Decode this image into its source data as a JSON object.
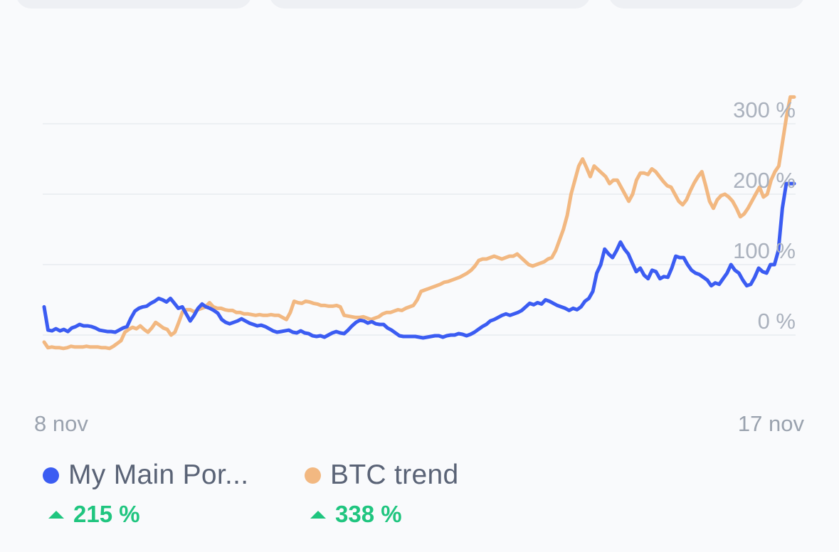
{
  "chart_data": {
    "type": "line",
    "x_start_label": "8 nov",
    "x_end_label": "17 nov",
    "y_ticks": [
      {
        "value": 0,
        "label": "0 %"
      },
      {
        "value": 100,
        "label": "100 %"
      },
      {
        "value": 200,
        "label": "200 %"
      },
      {
        "value": 300,
        "label": "300 %"
      }
    ],
    "ylim": [
      -30,
      340
    ],
    "grid": true,
    "series": [
      {
        "name": "My Main Por...",
        "color": "#3b5cf2",
        "change": "215 %",
        "values": [
          40,
          7,
          6,
          9,
          6,
          8,
          5,
          10,
          12,
          15,
          13,
          13,
          12,
          10,
          7,
          6,
          5,
          5,
          4,
          7,
          10,
          12,
          24,
          34,
          38,
          40,
          41,
          45,
          48,
          52,
          50,
          47,
          52,
          45,
          38,
          40,
          30,
          20,
          28,
          38,
          44,
          40,
          38,
          35,
          31,
          22,
          18,
          16,
          18,
          20,
          23,
          20,
          17,
          15,
          13,
          14,
          12,
          9,
          6,
          4,
          5,
          6,
          7,
          4,
          3,
          6,
          3,
          2,
          -1,
          -2,
          -1,
          -3,
          0,
          3,
          5,
          3,
          2,
          7,
          13,
          18,
          21,
          20,
          17,
          19,
          16,
          15,
          15,
          10,
          7,
          3,
          -1,
          -2,
          -2,
          -2,
          -2,
          -3,
          -4,
          -3,
          -2,
          -1,
          -1,
          -3,
          -1,
          0,
          0,
          2,
          1,
          -1,
          1,
          4,
          8,
          12,
          15,
          20,
          22,
          25,
          28,
          30,
          28,
          30,
          32,
          35,
          40,
          45,
          43,
          46,
          44,
          50,
          48,
          45,
          42,
          40,
          38,
          35,
          38,
          36,
          40,
          48,
          52,
          62,
          88,
          100,
          122,
          115,
          110,
          120,
          132,
          122,
          115,
          102,
          90,
          95,
          85,
          80,
          92,
          90,
          80,
          83,
          82,
          95,
          112,
          110,
          110,
          100,
          92,
          88,
          86,
          82,
          78,
          70,
          74,
          72,
          80,
          88,
          100,
          92,
          88,
          78,
          70,
          72,
          82,
          95,
          90,
          88,
          100,
          100,
          120,
          180,
          215,
          215,
          215
        ]
      },
      {
        "name": "BTC trend",
        "color": "#f2b881",
        "change": "338 %",
        "values": [
          -10,
          -18,
          -17,
          -18,
          -18,
          -19,
          -18,
          -16,
          -17,
          -17,
          -17,
          -16,
          -17,
          -17,
          -17,
          -18,
          -18,
          -19,
          -16,
          -12,
          -8,
          4,
          8,
          11,
          9,
          13,
          8,
          4,
          10,
          18,
          14,
          10,
          8,
          0,
          4,
          18,
          33,
          36,
          36,
          33,
          36,
          38,
          40,
          46,
          40,
          38,
          38,
          36,
          35,
          35,
          32,
          32,
          30,
          30,
          29,
          28,
          29,
          28,
          28,
          29,
          28,
          28,
          25,
          22,
          32,
          48,
          46,
          45,
          48,
          47,
          45,
          44,
          42,
          42,
          41,
          41,
          42,
          40,
          28,
          27,
          26,
          25,
          25,
          26,
          24,
          22,
          24,
          26,
          30,
          32,
          32,
          34,
          36,
          35,
          38,
          40,
          42,
          50,
          62,
          64,
          66,
          68,
          70,
          72,
          75,
          76,
          78,
          80,
          82,
          85,
          88,
          92,
          98,
          106,
          108,
          108,
          110,
          112,
          110,
          108,
          110,
          112,
          112,
          115,
          110,
          105,
          100,
          98,
          100,
          102,
          104,
          108,
          110,
          120,
          135,
          150,
          170,
          200,
          220,
          240,
          250,
          238,
          225,
          240,
          235,
          230,
          225,
          215,
          220,
          220,
          210,
          200,
          190,
          200,
          220,
          230,
          230,
          228,
          236,
          232,
          225,
          218,
          212,
          210,
          200,
          190,
          185,
          192,
          205,
          216,
          225,
          232,
          212,
          190,
          180,
          192,
          198,
          200,
          196,
          190,
          180,
          168,
          172,
          180,
          190,
          200,
          210,
          196,
          200,
          220,
          232,
          240,
          275,
          310,
          338,
          338
        ]
      }
    ]
  }
}
